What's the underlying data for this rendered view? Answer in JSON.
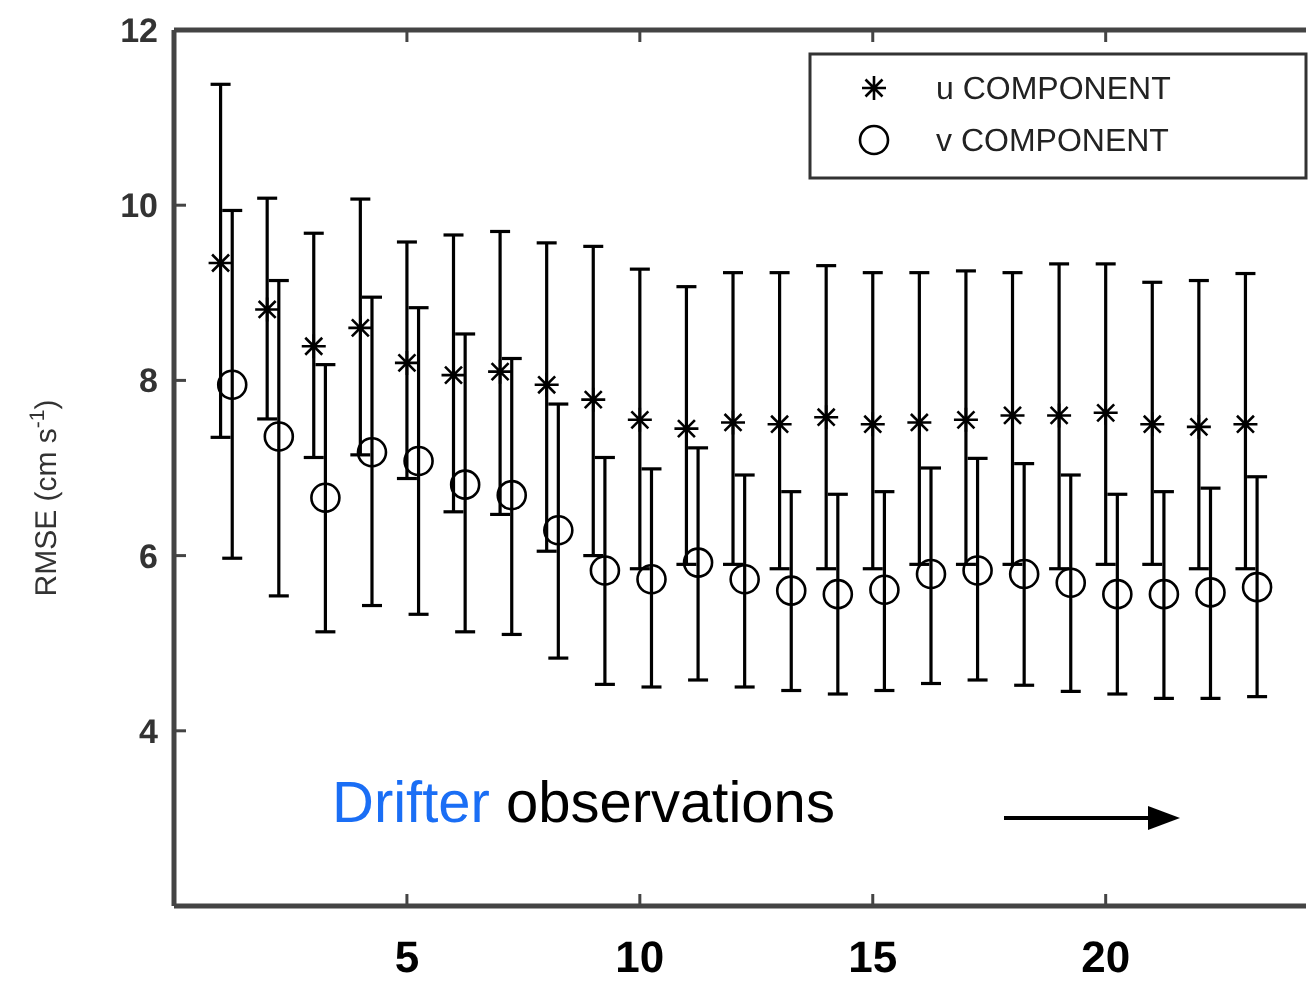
{
  "chart_data": {
    "type": "scatter",
    "ylabel": "RMSE (cm s$^{-1}$)",
    "x": [
      1,
      2,
      3,
      4,
      5,
      6,
      7,
      8,
      9,
      10,
      11,
      12,
      13,
      14,
      15,
      16,
      17,
      18,
      19,
      20,
      21,
      22,
      23
    ],
    "xlim": [
      0,
      24.3
    ],
    "xticks": [
      5,
      10,
      15,
      20
    ],
    "ylim": [
      2,
      12
    ],
    "yticks": [
      4,
      6,
      8,
      10,
      12
    ],
    "legend": "top right",
    "grid": false,
    "series": [
      {
        "name": "u COMPONENT",
        "color": "#000000",
        "marker": "cross",
        "values": [
          9.34,
          8.81,
          8.39,
          8.6,
          8.2,
          8.06,
          8.1,
          7.95,
          7.78,
          7.55,
          7.45,
          7.52,
          7.5,
          7.58,
          7.5,
          7.52,
          7.55,
          7.6,
          7.6,
          7.63,
          7.5,
          7.47,
          7.5
        ],
        "errors": [
          [
            7.35,
            11.38
          ],
          [
            7.56,
            10.08
          ],
          [
            7.12,
            9.68
          ],
          [
            7.15,
            10.07
          ],
          [
            6.88,
            9.58
          ],
          [
            6.5,
            9.66
          ],
          [
            6.47,
            9.7
          ],
          [
            6.05,
            9.57
          ],
          [
            6.0,
            9.53
          ],
          [
            5.85,
            9.27
          ],
          [
            5.9,
            9.07
          ],
          [
            5.9,
            9.23
          ],
          [
            5.85,
            9.23
          ],
          [
            5.85,
            9.31
          ],
          [
            5.85,
            9.23
          ],
          [
            5.9,
            9.23
          ],
          [
            5.9,
            9.25
          ],
          [
            5.9,
            9.23
          ],
          [
            5.85,
            9.33
          ],
          [
            5.9,
            9.33
          ],
          [
            5.9,
            9.12
          ],
          [
            5.85,
            9.14
          ],
          [
            5.85,
            9.22
          ]
        ]
      },
      {
        "name": "v COMPONENT",
        "color": "#000000",
        "marker": "circle",
        "x": [
          1.25,
          2.25,
          3.25,
          4.25,
          5.25,
          6.25,
          7.25,
          8.25,
          9.25,
          10.25,
          11.25,
          12.25,
          13.25,
          14.25,
          15.25,
          16.25,
          17.25,
          18.25,
          19.25,
          20.25,
          21.25,
          22.25,
          23.25
        ],
        "values": [
          7.95,
          7.36,
          6.66,
          7.18,
          7.08,
          6.81,
          6.69,
          6.29,
          5.83,
          5.73,
          5.92,
          5.73,
          5.6,
          5.56,
          5.61,
          5.79,
          5.83,
          5.79,
          5.69,
          5.56,
          5.56,
          5.58,
          5.64
        ],
        "errors": [
          [
            5.97,
            9.94
          ],
          [
            5.54,
            9.14
          ],
          [
            5.13,
            8.18
          ],
          [
            5.43,
            8.95
          ],
          [
            5.33,
            8.83
          ],
          [
            5.13,
            8.53
          ],
          [
            5.1,
            8.25
          ],
          [
            4.83,
            7.73
          ],
          [
            4.53,
            7.12
          ],
          [
            4.5,
            6.99
          ],
          [
            4.58,
            7.23
          ],
          [
            4.5,
            6.92
          ],
          [
            4.46,
            6.73
          ],
          [
            4.42,
            6.7
          ],
          [
            4.46,
            6.73
          ],
          [
            4.54,
            7.0
          ],
          [
            4.58,
            7.11
          ],
          [
            4.52,
            7.05
          ],
          [
            4.45,
            6.92
          ],
          [
            4.42,
            6.7
          ],
          [
            4.37,
            6.73
          ],
          [
            4.37,
            6.77
          ],
          [
            4.39,
            6.9
          ]
        ]
      }
    ],
    "annotations": [
      "Drifter observations"
    ]
  }
}
